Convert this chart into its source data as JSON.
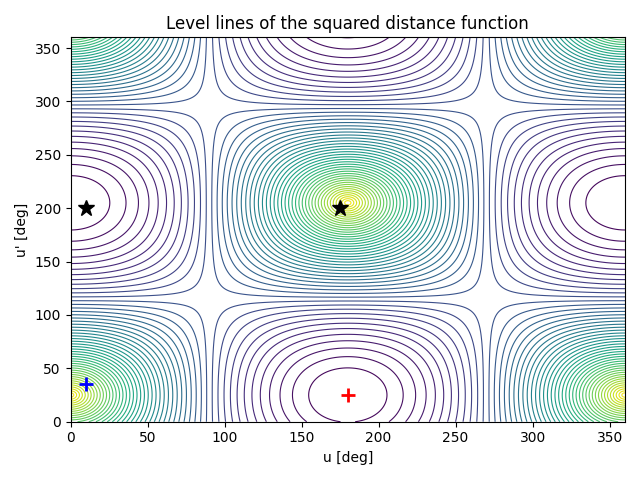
{
  "title": "Level lines of the squared distance function",
  "xlabel": "u [deg]",
  "ylabel": "u' [deg]",
  "xlim": [
    0,
    360
  ],
  "ylim": [
    0,
    360
  ],
  "xticks": [
    0,
    50,
    100,
    150,
    200,
    250,
    300,
    350
  ],
  "yticks": [
    0,
    50,
    100,
    150,
    200,
    250,
    300,
    350
  ],
  "red_plus": [
    180,
    25
  ],
  "blue_plus": [
    10,
    35
  ],
  "black_star1": [
    10,
    200
  ],
  "black_star2": [
    175,
    200
  ],
  "n_contours": 50,
  "colormap": "viridis",
  "figsize": [
    6.4,
    4.8
  ],
  "dpi": 100
}
